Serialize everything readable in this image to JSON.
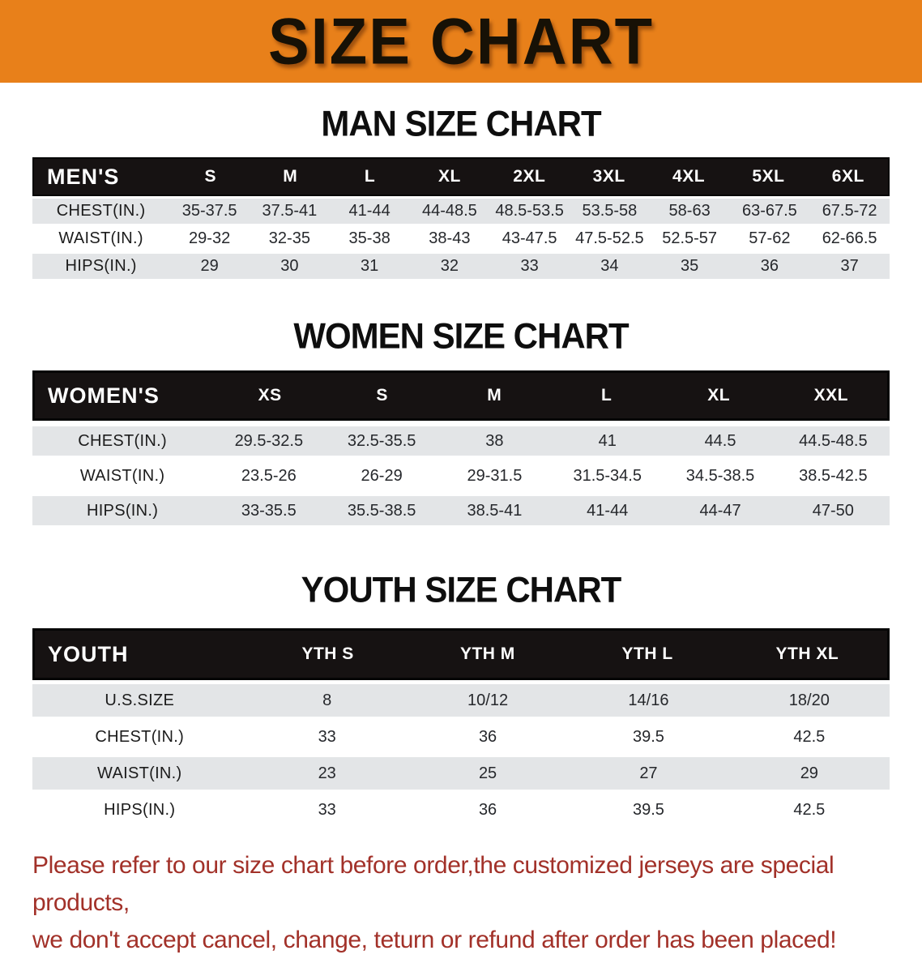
{
  "banner": {
    "title": "SIZE CHART"
  },
  "colors": {
    "banner_bg": "#E8801A",
    "table_header_bg": "#161212",
    "row_shade": "#E3E5E7",
    "disclaimer_red": "#A23129"
  },
  "sections": [
    {
      "title": "MAN SIZE CHART",
      "table": {
        "corner": "MEN'S",
        "columns": [
          "S",
          "M",
          "L",
          "XL",
          "2XL",
          "3XL",
          "4XL",
          "5XL",
          "6XL"
        ],
        "rows": [
          {
            "label": "CHEST(IN.)",
            "values": [
              "35-37.5",
              "37.5-41",
              "41-44",
              "44-48.5",
              "48.5-53.5",
              "53.5-58",
              "58-63",
              "63-67.5",
              "67.5-72"
            ]
          },
          {
            "label": "WAIST(IN.)",
            "values": [
              "29-32",
              "32-35",
              "35-38",
              "38-43",
              "43-47.5",
              "47.5-52.5",
              "52.5-57",
              "57-62",
              "62-66.5"
            ]
          },
          {
            "label": "HIPS(IN.)",
            "values": [
              "29",
              "30",
              "31",
              "32",
              "33",
              "34",
              "35",
              "36",
              "37"
            ]
          }
        ]
      }
    },
    {
      "title": "WOMEN SIZE CHART",
      "table": {
        "corner": "WOMEN'S",
        "columns": [
          "XS",
          "S",
          "M",
          "L",
          "XL",
          "XXL"
        ],
        "rows": [
          {
            "label": "CHEST(IN.)",
            "values": [
              "29.5-32.5",
              "32.5-35.5",
              "38",
              "41",
              "44.5",
              "44.5-48.5"
            ]
          },
          {
            "label": "WAIST(IN.)",
            "values": [
              "23.5-26",
              "26-29",
              "29-31.5",
              "31.5-34.5",
              "34.5-38.5",
              "38.5-42.5"
            ]
          },
          {
            "label": "HIPS(IN.)",
            "values": [
              "33-35.5",
              "35.5-38.5",
              "38.5-41",
              "41-44",
              "44-47",
              "47-50"
            ]
          }
        ]
      }
    },
    {
      "title": "YOUTH SIZE CHART",
      "table": {
        "corner": "YOUTH",
        "columns": [
          "YTH S",
          "YTH M",
          "YTH L",
          "YTH XL"
        ],
        "rows": [
          {
            "label": "U.S.SIZE",
            "values": [
              "8",
              "10/12",
              "14/16",
              "18/20"
            ]
          },
          {
            "label": "CHEST(IN.)",
            "values": [
              "33",
              "36",
              "39.5",
              "42.5"
            ]
          },
          {
            "label": "WAIST(IN.)",
            "values": [
              "23",
              "25",
              "27",
              "29"
            ]
          },
          {
            "label": "HIPS(IN.)",
            "values": [
              "33",
              "36",
              "39.5",
              "42.5"
            ]
          }
        ]
      }
    }
  ],
  "footer": {
    "line1": "Please refer to our size chart before order,the customized jerseys are special products,",
    "line2": "we don't accept cancel, change, teturn or refund after order has been placed!"
  }
}
